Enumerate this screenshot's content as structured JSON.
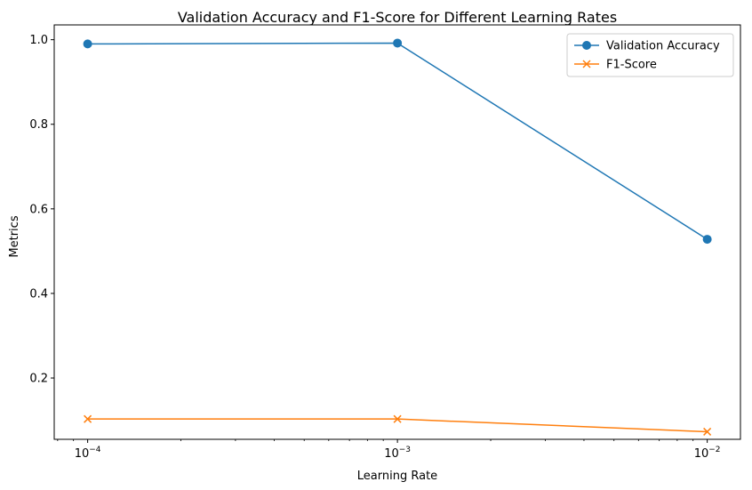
{
  "chart_data": {
    "type": "line",
    "title": "Validation Accuracy and F1-Score for Different Learning Rates",
    "xlabel": "Learning Rate",
    "ylabel": "Metrics",
    "xscale": "log",
    "xlim": [
      7.8e-05,
      0.0128
    ],
    "ylim": [
      0.055,
      1.035
    ],
    "grid": false,
    "legend_position": "top-right",
    "x": [
      0.0001,
      0.001,
      0.01
    ],
    "x_tick_labels": [
      {
        "value": 0.0001,
        "base": "10",
        "exp": "−4"
      },
      {
        "value": 0.001,
        "base": "10",
        "exp": "−3"
      },
      {
        "value": 0.01,
        "base": "10",
        "exp": "−2"
      }
    ],
    "y_ticks": [
      0.2,
      0.4,
      0.6,
      0.8,
      1.0
    ],
    "y_tick_labels": [
      "0.2",
      "0.4",
      "0.6",
      "0.8",
      "1.0"
    ],
    "series": [
      {
        "name": "Validation Accuracy",
        "values": [
          0.99,
          0.992,
          0.528
        ],
        "color": "#1f77b4",
        "marker": "circle"
      },
      {
        "name": "F1-Score",
        "values": [
          0.103,
          0.103,
          0.073
        ],
        "color": "#ff7f0e",
        "marker": "x"
      }
    ]
  }
}
